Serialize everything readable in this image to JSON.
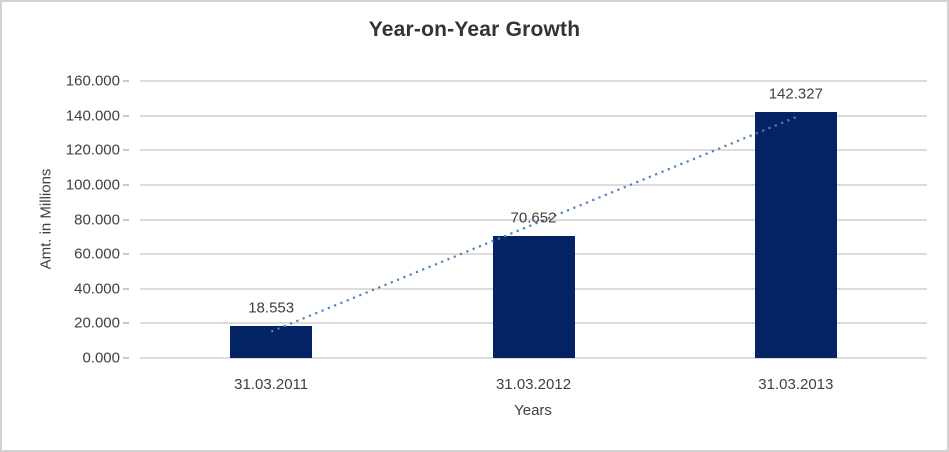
{
  "chart_data": {
    "type": "bar",
    "title": "Year-on-Year Growth",
    "xlabel": "Years",
    "ylabel": "Amt. in Millions",
    "categories": [
      "31.03.2011",
      "31.03.2012",
      "31.03.2013"
    ],
    "values": [
      18.553,
      70.652,
      142.327
    ],
    "data_labels": [
      "18.553",
      "70.652",
      "142.327"
    ],
    "ylim": [
      0,
      160
    ],
    "ytick_step": 20,
    "ytick_labels": [
      "0.000",
      "20.000",
      "40.000",
      "60.000",
      "80.000",
      "100.000",
      "120.000",
      "140.000",
      "160.000"
    ],
    "grid": true,
    "legend": false,
    "bar_color": "#042365",
    "trendline": {
      "type": "linear",
      "style": "dotted",
      "color": "#4E81BD",
      "fit_values": [
        15.29,
        77.177,
        139.064
      ]
    },
    "colors": {
      "text": "#404040",
      "title_text": "#333333",
      "gridline": "#DCDCDC",
      "tick": "#C9C9C9",
      "border": "#D3D1D1",
      "background": "#FFFFFF"
    }
  }
}
